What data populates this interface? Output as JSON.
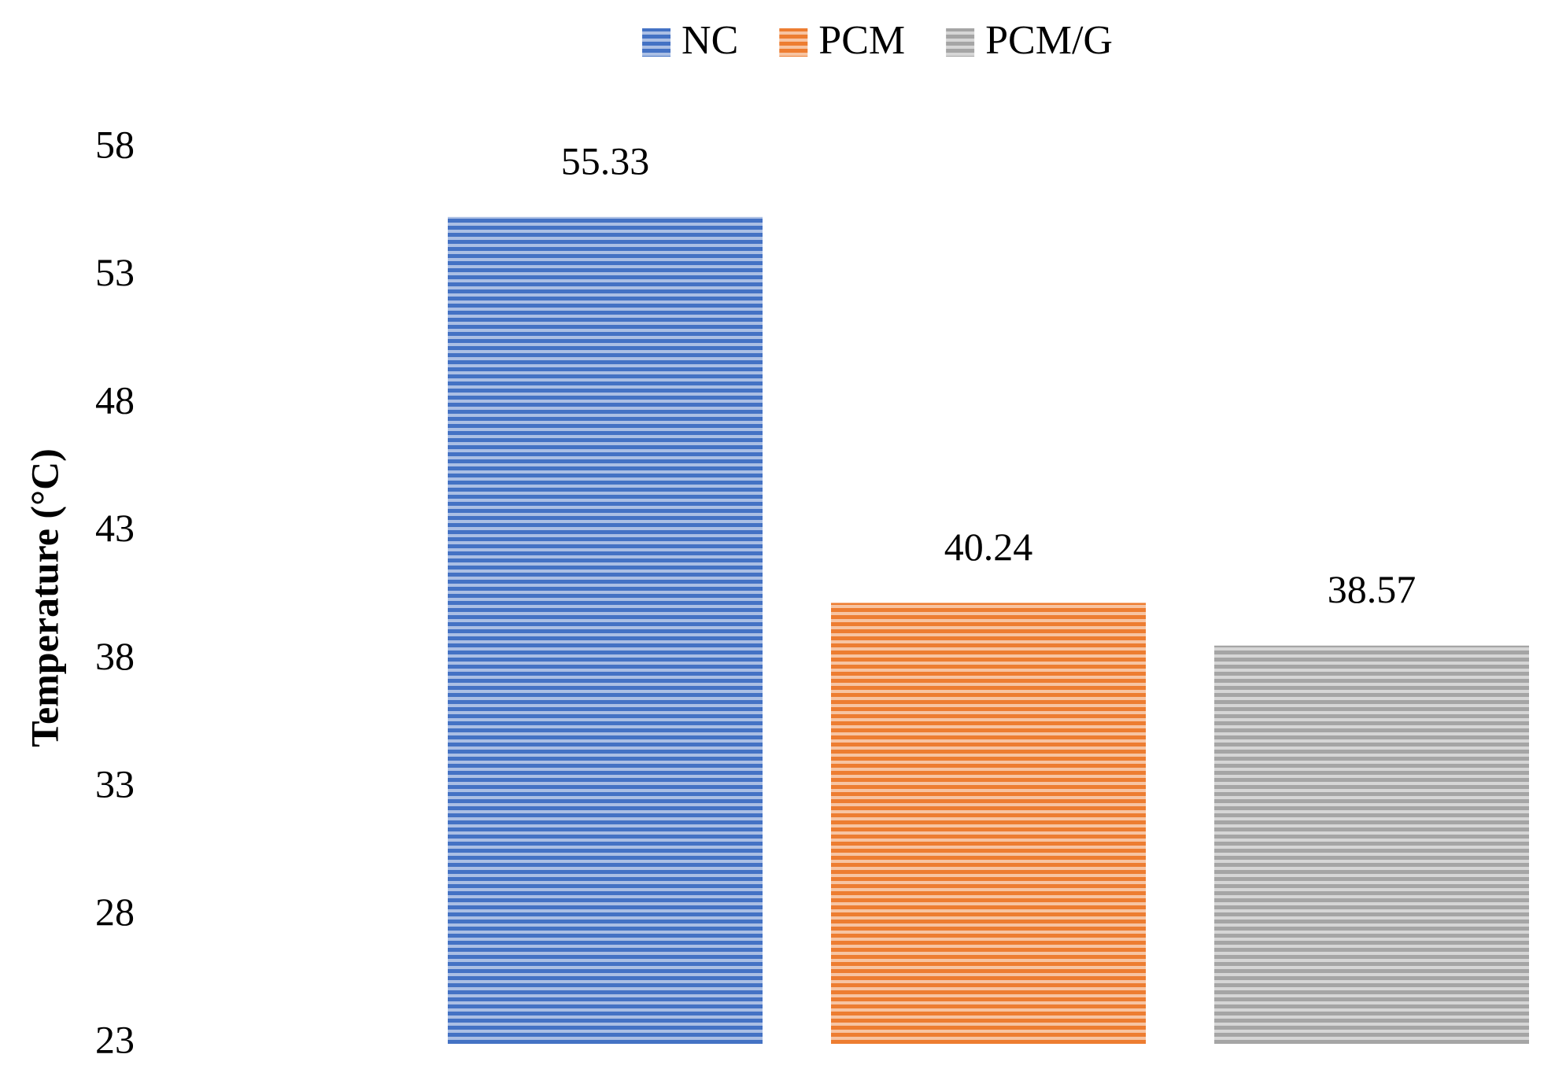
{
  "chart_data": {
    "type": "bar",
    "y_label": "Temperature (°C)",
    "categories": [
      null
    ],
    "series": [
      {
        "name": "NC",
        "color": "#4472c4",
        "values": [
          55.33
        ]
      },
      {
        "name": "PCM",
        "color": "#ed7d31",
        "values": [
          40.24
        ]
      },
      {
        "name": "PCM/G",
        "color": "#a5a5a5",
        "values": [
          38.57
        ]
      }
    ],
    "ylim": [
      23,
      58
    ],
    "yticks": [
      23,
      28,
      33,
      38,
      43,
      48,
      53,
      58
    ],
    "grid": false,
    "legend": "top"
  }
}
